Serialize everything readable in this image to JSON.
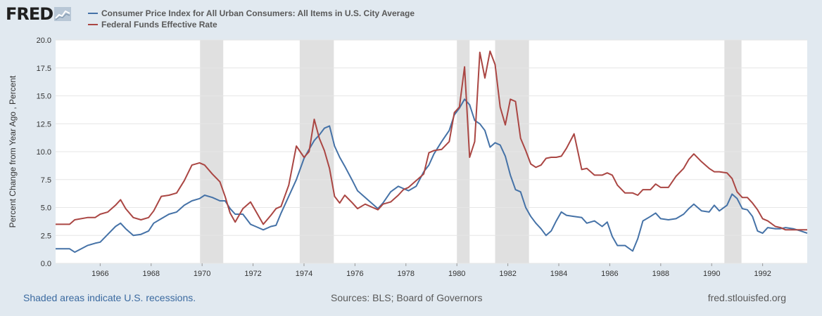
{
  "branding": {
    "logo_text": "FRED"
  },
  "footer": {
    "recessions_note": "Shaded areas indicate U.S. recessions.",
    "sources": "Sources: BLS; Board of Governors",
    "site": "fred.stlouisfed.org"
  },
  "chart_data": {
    "type": "line",
    "title": "",
    "xlabel": "",
    "ylabel": "Percent Change from Year Ago , Percent",
    "xlim": [
      1964.25,
      1993.75
    ],
    "ylim": [
      0,
      20
    ],
    "x_ticks": [
      "1966",
      "1968",
      "1970",
      "1972",
      "1974",
      "1976",
      "1978",
      "1980",
      "1982",
      "1984",
      "1986",
      "1988",
      "1990",
      "1992"
    ],
    "y_ticks": [
      "0.0",
      "2.5",
      "5.0",
      "7.5",
      "10.0",
      "12.5",
      "15.0",
      "17.5",
      "20.0"
    ],
    "grid": true,
    "legend_position": "top",
    "recessions": [
      [
        1969.92,
        1970.83
      ],
      [
        1973.83,
        1975.17
      ],
      [
        1980.0,
        1980.5
      ],
      [
        1981.5,
        1982.83
      ],
      [
        1990.5,
        1991.17
      ]
    ],
    "series": [
      {
        "name": "Consumer Price Index for All Urban Consumers: All Items in U.S. City Average",
        "color": "#4572a7",
        "points": [
          [
            1964.25,
            1.3
          ],
          [
            1964.8,
            1.3
          ],
          [
            1965.0,
            1.0
          ],
          [
            1965.5,
            1.6
          ],
          [
            1965.8,
            1.8
          ],
          [
            1966.0,
            1.9
          ],
          [
            1966.3,
            2.6
          ],
          [
            1966.6,
            3.3
          ],
          [
            1966.8,
            3.6
          ],
          [
            1967.0,
            3.1
          ],
          [
            1967.3,
            2.5
          ],
          [
            1967.6,
            2.6
          ],
          [
            1967.9,
            2.9
          ],
          [
            1968.1,
            3.6
          ],
          [
            1968.4,
            4.0
          ],
          [
            1968.7,
            4.4
          ],
          [
            1969.0,
            4.6
          ],
          [
            1969.3,
            5.2
          ],
          [
            1969.6,
            5.6
          ],
          [
            1969.9,
            5.8
          ],
          [
            1970.1,
            6.1
          ],
          [
            1970.4,
            5.9
          ],
          [
            1970.7,
            5.6
          ],
          [
            1970.9,
            5.6
          ],
          [
            1971.1,
            4.9
          ],
          [
            1971.3,
            4.4
          ],
          [
            1971.6,
            4.4
          ],
          [
            1971.9,
            3.5
          ],
          [
            1972.1,
            3.3
          ],
          [
            1972.4,
            3.0
          ],
          [
            1972.7,
            3.3
          ],
          [
            1972.9,
            3.4
          ],
          [
            1973.1,
            4.5
          ],
          [
            1973.4,
            6.0
          ],
          [
            1973.7,
            7.5
          ],
          [
            1974.0,
            9.4
          ],
          [
            1974.2,
            10.2
          ],
          [
            1974.4,
            11.0
          ],
          [
            1974.6,
            11.5
          ],
          [
            1974.8,
            12.1
          ],
          [
            1975.0,
            12.3
          ],
          [
            1975.2,
            10.5
          ],
          [
            1975.4,
            9.5
          ],
          [
            1975.6,
            8.7
          ],
          [
            1975.9,
            7.4
          ],
          [
            1976.1,
            6.5
          ],
          [
            1976.4,
            5.9
          ],
          [
            1976.7,
            5.3
          ],
          [
            1976.9,
            4.9
          ],
          [
            1977.1,
            5.4
          ],
          [
            1977.4,
            6.4
          ],
          [
            1977.7,
            6.9
          ],
          [
            1977.9,
            6.7
          ],
          [
            1978.1,
            6.5
          ],
          [
            1978.4,
            6.9
          ],
          [
            1978.7,
            8.2
          ],
          [
            1978.9,
            8.8
          ],
          [
            1979.1,
            9.8
          ],
          [
            1979.4,
            10.9
          ],
          [
            1979.7,
            11.9
          ],
          [
            1979.9,
            13.3
          ],
          [
            1980.1,
            13.9
          ],
          [
            1980.3,
            14.7
          ],
          [
            1980.5,
            14.2
          ],
          [
            1980.7,
            12.8
          ],
          [
            1980.9,
            12.5
          ],
          [
            1981.1,
            11.9
          ],
          [
            1981.3,
            10.4
          ],
          [
            1981.5,
            10.8
          ],
          [
            1981.7,
            10.6
          ],
          [
            1981.9,
            9.6
          ],
          [
            1982.1,
            7.9
          ],
          [
            1982.3,
            6.6
          ],
          [
            1982.5,
            6.4
          ],
          [
            1982.7,
            5.0
          ],
          [
            1982.9,
            4.2
          ],
          [
            1983.1,
            3.6
          ],
          [
            1983.3,
            3.1
          ],
          [
            1983.5,
            2.5
          ],
          [
            1983.7,
            2.9
          ],
          [
            1983.9,
            3.8
          ],
          [
            1984.1,
            4.6
          ],
          [
            1984.3,
            4.3
          ],
          [
            1984.6,
            4.2
          ],
          [
            1984.9,
            4.1
          ],
          [
            1985.1,
            3.6
          ],
          [
            1985.4,
            3.8
          ],
          [
            1985.7,
            3.3
          ],
          [
            1985.9,
            3.7
          ],
          [
            1986.1,
            2.4
          ],
          [
            1986.3,
            1.6
          ],
          [
            1986.6,
            1.6
          ],
          [
            1986.9,
            1.1
          ],
          [
            1987.1,
            2.2
          ],
          [
            1987.3,
            3.8
          ],
          [
            1987.6,
            4.2
          ],
          [
            1987.8,
            4.5
          ],
          [
            1988.0,
            4.0
          ],
          [
            1988.3,
            3.9
          ],
          [
            1988.6,
            4.0
          ],
          [
            1988.9,
            4.4
          ],
          [
            1989.1,
            4.9
          ],
          [
            1989.3,
            5.3
          ],
          [
            1989.6,
            4.7
          ],
          [
            1989.9,
            4.6
          ],
          [
            1990.1,
            5.2
          ],
          [
            1990.3,
            4.7
          ],
          [
            1990.6,
            5.2
          ],
          [
            1990.8,
            6.2
          ],
          [
            1991.0,
            5.8
          ],
          [
            1991.2,
            4.9
          ],
          [
            1991.4,
            4.8
          ],
          [
            1991.6,
            4.2
          ],
          [
            1991.8,
            2.9
          ],
          [
            1992.0,
            2.7
          ],
          [
            1992.2,
            3.2
          ],
          [
            1992.5,
            3.1
          ],
          [
            1992.7,
            3.1
          ],
          [
            1992.9,
            3.2
          ],
          [
            1993.2,
            3.1
          ],
          [
            1993.5,
            2.9
          ],
          [
            1993.75,
            2.7
          ]
        ]
      },
      {
        "name": "Federal Funds Effective Rate",
        "color": "#aa4643",
        "points": [
          [
            1964.25,
            3.5
          ],
          [
            1964.8,
            3.5
          ],
          [
            1965.0,
            3.9
          ],
          [
            1965.5,
            4.1
          ],
          [
            1965.8,
            4.1
          ],
          [
            1966.0,
            4.4
          ],
          [
            1966.3,
            4.6
          ],
          [
            1966.6,
            5.2
          ],
          [
            1966.8,
            5.7
          ],
          [
            1967.0,
            4.9
          ],
          [
            1967.3,
            4.1
          ],
          [
            1967.6,
            3.9
          ],
          [
            1967.9,
            4.1
          ],
          [
            1968.1,
            4.7
          ],
          [
            1968.4,
            6.0
          ],
          [
            1968.7,
            6.1
          ],
          [
            1969.0,
            6.3
          ],
          [
            1969.3,
            7.4
          ],
          [
            1969.6,
            8.8
          ],
          [
            1969.9,
            9.0
          ],
          [
            1970.1,
            8.8
          ],
          [
            1970.4,
            8.0
          ],
          [
            1970.7,
            7.3
          ],
          [
            1970.9,
            6.0
          ],
          [
            1971.1,
            4.5
          ],
          [
            1971.3,
            3.7
          ],
          [
            1971.6,
            4.9
          ],
          [
            1971.9,
            5.5
          ],
          [
            1972.1,
            4.7
          ],
          [
            1972.4,
            3.5
          ],
          [
            1972.7,
            4.3
          ],
          [
            1972.9,
            4.9
          ],
          [
            1973.1,
            5.1
          ],
          [
            1973.4,
            7.0
          ],
          [
            1973.7,
            10.5
          ],
          [
            1974.0,
            9.5
          ],
          [
            1974.2,
            10.0
          ],
          [
            1974.4,
            12.9
          ],
          [
            1974.6,
            11.2
          ],
          [
            1974.8,
            10.1
          ],
          [
            1975.0,
            8.5
          ],
          [
            1975.2,
            6.0
          ],
          [
            1975.4,
            5.4
          ],
          [
            1975.6,
            6.1
          ],
          [
            1975.9,
            5.4
          ],
          [
            1976.1,
            4.9
          ],
          [
            1976.4,
            5.3
          ],
          [
            1976.7,
            5.0
          ],
          [
            1976.9,
            4.8
          ],
          [
            1977.1,
            5.3
          ],
          [
            1977.4,
            5.5
          ],
          [
            1977.7,
            6.1
          ],
          [
            1977.9,
            6.6
          ],
          [
            1978.1,
            6.8
          ],
          [
            1978.4,
            7.4
          ],
          [
            1978.7,
            8.0
          ],
          [
            1978.9,
            9.9
          ],
          [
            1979.1,
            10.1
          ],
          [
            1979.4,
            10.2
          ],
          [
            1979.7,
            10.9
          ],
          [
            1979.9,
            13.5
          ],
          [
            1980.1,
            14.0
          ],
          [
            1980.3,
            17.6
          ],
          [
            1980.5,
            9.5
          ],
          [
            1980.7,
            10.9
          ],
          [
            1980.9,
            18.9
          ],
          [
            1981.1,
            16.6
          ],
          [
            1981.3,
            19.0
          ],
          [
            1981.5,
            17.8
          ],
          [
            1981.7,
            14.0
          ],
          [
            1981.9,
            12.4
          ],
          [
            1982.1,
            14.7
          ],
          [
            1982.3,
            14.5
          ],
          [
            1982.5,
            11.2
          ],
          [
            1982.7,
            10.1
          ],
          [
            1982.9,
            8.9
          ],
          [
            1983.1,
            8.6
          ],
          [
            1983.3,
            8.8
          ],
          [
            1983.5,
            9.4
          ],
          [
            1983.7,
            9.5
          ],
          [
            1983.9,
            9.5
          ],
          [
            1984.1,
            9.6
          ],
          [
            1984.3,
            10.3
          ],
          [
            1984.6,
            11.6
          ],
          [
            1984.9,
            8.4
          ],
          [
            1985.1,
            8.5
          ],
          [
            1985.4,
            7.9
          ],
          [
            1985.7,
            7.9
          ],
          [
            1985.9,
            8.1
          ],
          [
            1986.1,
            7.9
          ],
          [
            1986.3,
            7.0
          ],
          [
            1986.6,
            6.3
          ],
          [
            1986.9,
            6.3
          ],
          [
            1987.1,
            6.1
          ],
          [
            1987.3,
            6.6
          ],
          [
            1987.6,
            6.6
          ],
          [
            1987.8,
            7.1
          ],
          [
            1988.0,
            6.8
          ],
          [
            1988.3,
            6.8
          ],
          [
            1988.6,
            7.8
          ],
          [
            1988.9,
            8.5
          ],
          [
            1989.1,
            9.3
          ],
          [
            1989.3,
            9.8
          ],
          [
            1989.6,
            9.1
          ],
          [
            1989.9,
            8.5
          ],
          [
            1990.1,
            8.2
          ],
          [
            1990.3,
            8.2
          ],
          [
            1990.6,
            8.1
          ],
          [
            1990.8,
            7.6
          ],
          [
            1991.0,
            6.4
          ],
          [
            1991.2,
            5.9
          ],
          [
            1991.4,
            5.9
          ],
          [
            1991.6,
            5.4
          ],
          [
            1991.8,
            4.8
          ],
          [
            1992.0,
            4.0
          ],
          [
            1992.2,
            3.8
          ],
          [
            1992.5,
            3.3
          ],
          [
            1992.7,
            3.2
          ],
          [
            1992.9,
            3.0
          ],
          [
            1993.2,
            3.0
          ],
          [
            1993.5,
            3.0
          ],
          [
            1993.75,
            3.0
          ]
        ]
      }
    ]
  }
}
